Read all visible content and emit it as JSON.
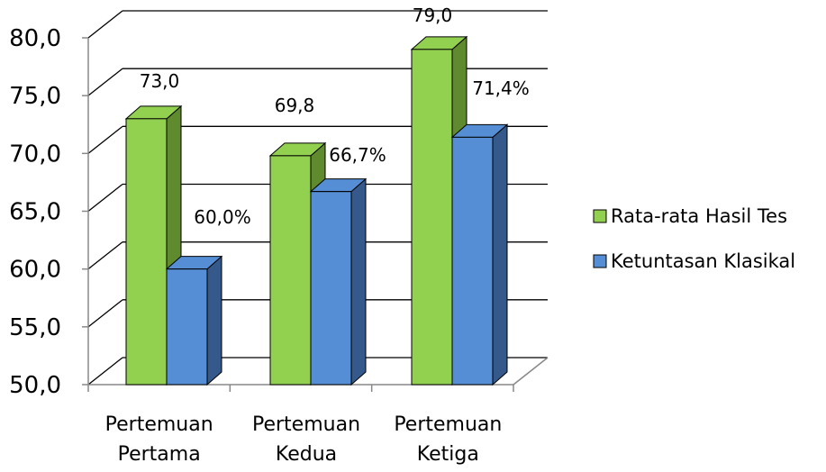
{
  "chart_data": {
    "type": "bar",
    "categories": [
      [
        "Pertemuan",
        "Pertama"
      ],
      [
        "Pertemuan",
        "Kedua"
      ],
      [
        "Pertemuan",
        "Ketiga"
      ]
    ],
    "series": [
      {
        "name": "Rata-rata Hasil Tes",
        "values": [
          73.0,
          69.8,
          79.0
        ],
        "labels": [
          "73,0",
          "69,8",
          "79,0"
        ],
        "color": "#92d050",
        "side_color": "#5f8a2e"
      },
      {
        "name": "Ketuntasan Klasikal",
        "values": [
          60.0,
          66.7,
          71.4
        ],
        "labels": [
          "60,0%",
          "66,7%",
          "71,4%"
        ],
        "color": "#558ed5",
        "side_color": "#35598a"
      }
    ],
    "y_ticks": [
      "50,0",
      "55,0",
      "60,0",
      "65,0",
      "70,0",
      "75,0",
      "80,0"
    ],
    "ylim": [
      50,
      80
    ],
    "grid": true,
    "legend_position": "right",
    "style": "3d-clustered-column"
  }
}
